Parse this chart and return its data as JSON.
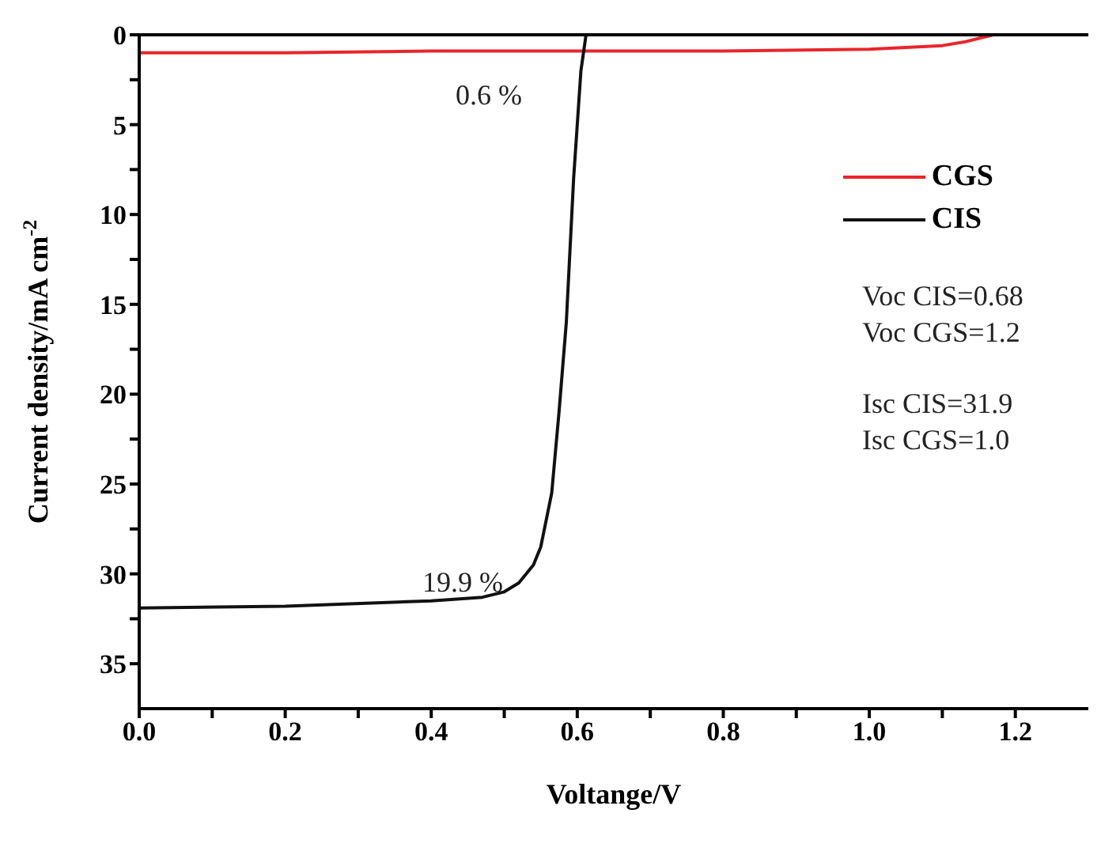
{
  "chart_data": {
    "type": "line",
    "xlabel": "Voltange/V",
    "ylabel": "Current density/mA cm$^{-2}$",
    "xlim": [
      0,
      1.3
    ],
    "ylim": [
      37.5,
      0
    ],
    "xticks": [
      {
        "value": 0,
        "label": "0.0"
      },
      {
        "value": 0.1,
        "label": null
      },
      {
        "value": 0.2,
        "label": "0.2"
      },
      {
        "value": 0.3,
        "label": null
      },
      {
        "value": 0.4,
        "label": "0.4"
      },
      {
        "value": 0.5,
        "label": null
      },
      {
        "value": 0.6,
        "label": "0.6"
      },
      {
        "value": 0.7,
        "label": null
      },
      {
        "value": 0.8,
        "label": "0.8"
      },
      {
        "value": 0.9,
        "label": null
      },
      {
        "value": 1.0,
        "label": "1.0"
      },
      {
        "value": 1.1,
        "label": null
      },
      {
        "value": 1.2,
        "label": "1.2"
      }
    ],
    "yticks": [
      0,
      {
        "value": 2.5,
        "label": null
      },
      5,
      {
        "value": 7.5,
        "label": null
      },
      10,
      {
        "value": 12.5,
        "label": null
      },
      15,
      {
        "value": 17.5,
        "label": null
      },
      20,
      {
        "value": 22.5,
        "label": null
      },
      25,
      {
        "value": 27.5,
        "label": null
      },
      30,
      {
        "value": 32.5,
        "label": null
      },
      35
    ],
    "series": [
      {
        "name": "CGS",
        "color": "#e8262b",
        "x": [
          0,
          0.2,
          0.4,
          0.6,
          0.8,
          1.0,
          1.1,
          1.13,
          1.15,
          1.17
        ],
        "values": [
          1.0,
          1.0,
          0.9,
          0.9,
          0.9,
          0.8,
          0.6,
          0.4,
          0.2,
          0
        ]
      },
      {
        "name": "CIS",
        "color": "#111111",
        "x": [
          0,
          0.2,
          0.4,
          0.47,
          0.5,
          0.52,
          0.54,
          0.55,
          0.565,
          0.575,
          0.585,
          0.595,
          0.605,
          0.612
        ],
        "values": [
          31.9,
          31.8,
          31.5,
          31.3,
          31.0,
          30.5,
          29.5,
          28.5,
          25.5,
          21,
          16,
          8,
          2,
          0
        ]
      }
    ],
    "annotations": [
      "0.6 %",
      "19.9 %",
      "Voc CIS=0.68",
      "Voc CGS=1.2",
      "Isc CIS=31.9",
      "Isc CGS=1.0"
    ],
    "legend": "top right",
    "marker": "none",
    "line_style": "solid"
  }
}
